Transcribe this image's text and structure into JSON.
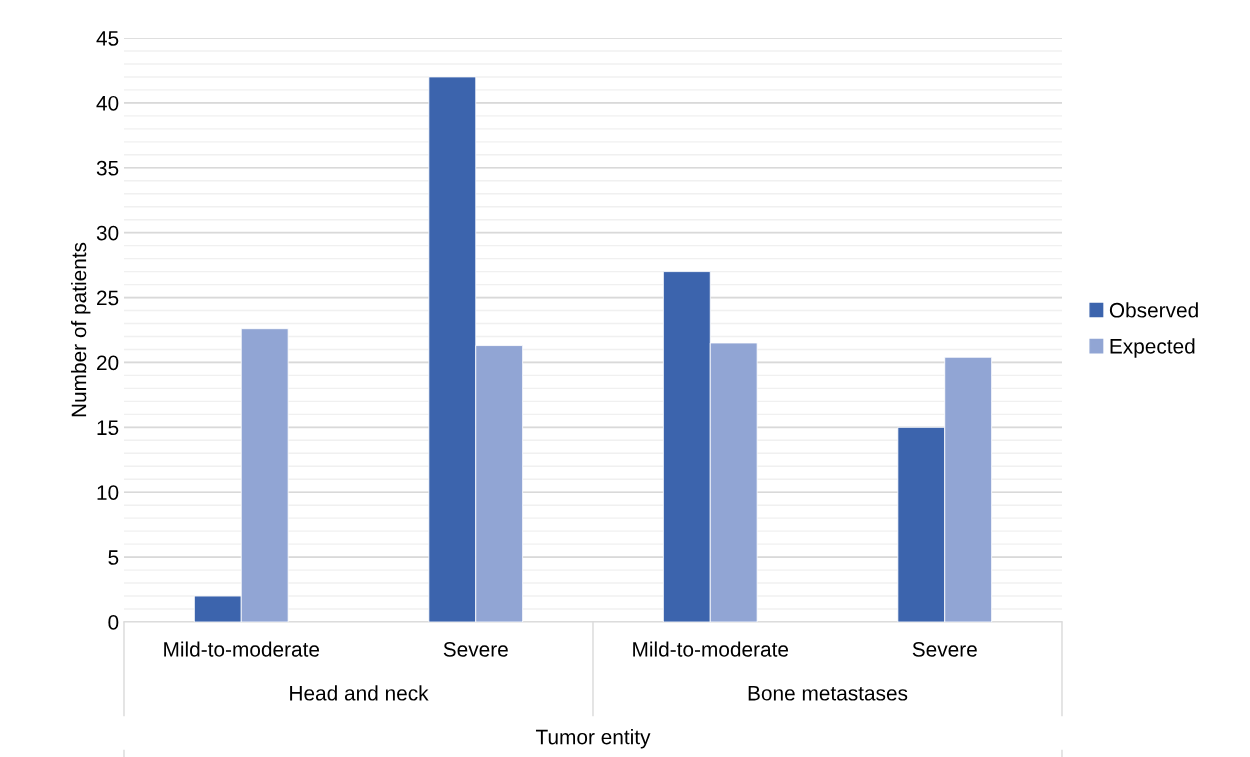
{
  "chart_data": {
    "type": "bar",
    "xlabel": "Tumor entity",
    "ylabel": "Number of patients",
    "categories": [
      "Mild-to-moderate",
      "Severe",
      "Mild-to-moderate",
      "Severe"
    ],
    "annotations": [
      "Head and neck",
      "Bone metastases"
    ],
    "series": [
      {
        "name": "Observed",
        "color": "#3c64ad",
        "values": [
          2,
          42,
          27,
          15
        ]
      },
      {
        "name": "Expected",
        "color": "#91a5d4",
        "values": [
          22.6,
          21.3,
          21.5,
          20.4
        ]
      }
    ],
    "ylim": [
      0,
      45
    ],
    "yticks": [
      0,
      5,
      10,
      15,
      20,
      25,
      30,
      35,
      40,
      45
    ],
    "grid": "y",
    "legend": "right"
  }
}
